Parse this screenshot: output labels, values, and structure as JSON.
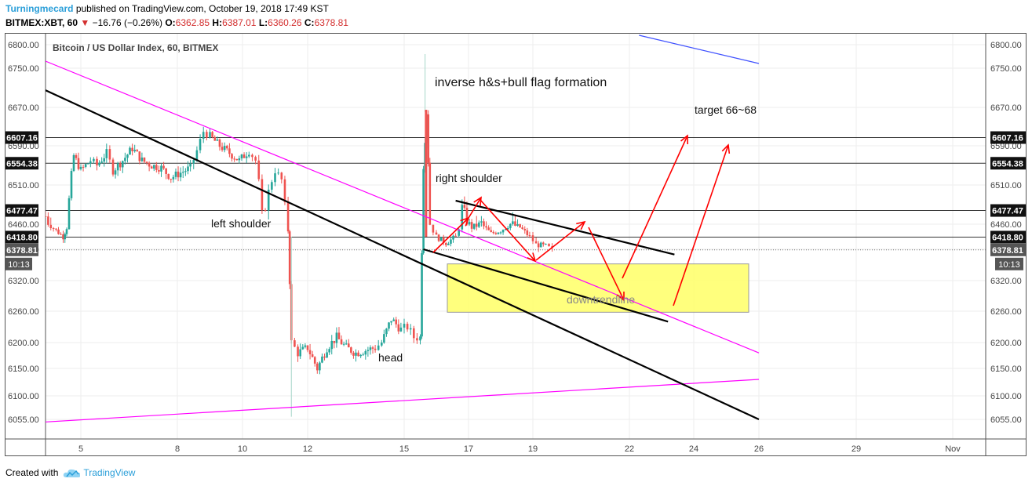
{
  "header": {
    "author": "Turningmecard",
    "published_text": "published on TradingView.com, October 19, 2018 17:49 KST",
    "symbol": "BITMEX:XBT, 60",
    "change": "−16.76 (−0.26%)",
    "open_label": "O:",
    "open": "6362.85",
    "high_label": "H:",
    "high": "6387.01",
    "low_label": "L:",
    "low": "6360.26",
    "close_label": "C:",
    "close": "6378.81"
  },
  "footer": {
    "created_with": "Created with",
    "brand": "TradingView"
  },
  "colors": {
    "up": "#26a69a",
    "down": "#ef5350",
    "magenta": "#ff00ff",
    "blue": "#3f51ff",
    "arrow": "#ff0000",
    "box": "#ffff66"
  },
  "chart_data": {
    "type": "candlestick",
    "title": "Bitcoin / US Dollar Index, 60, BITMEX",
    "y_ticks": [
      "6800.00",
      "6750.00",
      "6670.00",
      "6590.00",
      "6510.00",
      "6460.00",
      "6380.00",
      "6320.00",
      "6260.00",
      "6200.00",
      "6150.00",
      "6100.00",
      "6055.00"
    ],
    "x_ticks": [
      "5",
      "8",
      "10",
      "12",
      "15",
      "17",
      "19",
      "22",
      "24",
      "26",
      "29",
      "Nov"
    ],
    "ylim": [
      6050,
      6810
    ],
    "price_labels": [
      "6607.16",
      "6554.38",
      "6477.47",
      "6418.80",
      "6378.81"
    ],
    "countdown": "10:13",
    "current_price": 6378.81,
    "horizontal_levels": [
      6607.16,
      6554.38,
      6477.47,
      6418.8
    ],
    "annotations": {
      "pattern": "inverse h&s+bull flag formation",
      "target": "target 66~68",
      "right_shoulder": "right shoulder",
      "left_shoulder": "left shoulder",
      "head": "head",
      "box": "downtrendline"
    },
    "price_path": [
      [
        4.0,
        6470
      ],
      [
        4.3,
        6440
      ],
      [
        4.5,
        6420
      ],
      [
        4.6,
        6450
      ],
      [
        4.8,
        6570
      ],
      [
        5.0,
        6540
      ],
      [
        5.3,
        6560
      ],
      [
        5.5,
        6550
      ],
      [
        5.8,
        6575
      ],
      [
        6.0,
        6540
      ],
      [
        6.3,
        6560
      ],
      [
        6.6,
        6585
      ],
      [
        6.9,
        6560
      ],
      [
        7.2,
        6550
      ],
      [
        7.5,
        6545
      ],
      [
        7.8,
        6525
      ],
      [
        8.1,
        6535
      ],
      [
        8.4,
        6545
      ],
      [
        8.6,
        6580
      ],
      [
        8.8,
        6620
      ],
      [
        9.0,
        6610
      ],
      [
        9.3,
        6590
      ],
      [
        9.6,
        6575
      ],
      [
        9.9,
        6560
      ],
      [
        10.2,
        6580
      ],
      [
        10.4,
        6560
      ],
      [
        10.6,
        6470
      ],
      [
        10.8,
        6500
      ],
      [
        11.0,
        6540
      ],
      [
        11.2,
        6520
      ],
      [
        11.4,
        6440
      ],
      [
        11.5,
        6200
      ],
      [
        11.7,
        6180
      ],
      [
        12.0,
        6190
      ],
      [
        12.3,
        6150
      ],
      [
        12.6,
        6190
      ],
      [
        12.9,
        6210
      ],
      [
        13.2,
        6190
      ],
      [
        13.5,
        6180
      ],
      [
        13.8,
        6185
      ],
      [
        14.1,
        6190
      ],
      [
        14.3,
        6200
      ],
      [
        14.6,
        6245
      ],
      [
        14.9,
        6225
      ],
      [
        15.1,
        6230
      ],
      [
        15.3,
        6210
      ],
      [
        15.5,
        6210
      ],
      [
        15.6,
        6550
      ],
      [
        15.7,
        6660
      ],
      [
        15.8,
        6460
      ],
      [
        16.0,
        6420
      ],
      [
        16.3,
        6400
      ],
      [
        16.6,
        6420
      ],
      [
        16.8,
        6480
      ],
      [
        17.1,
        6450
      ],
      [
        17.4,
        6460
      ],
      [
        17.7,
        6430
      ],
      [
        18.0,
        6440
      ],
      [
        18.3,
        6460
      ],
      [
        18.6,
        6450
      ],
      [
        18.9,
        6420
      ],
      [
        19.1,
        6395
      ],
      [
        19.4,
        6390
      ],
      [
        19.6,
        6378.81
      ]
    ],
    "trendlines": [
      {
        "color": "magenta",
        "from": [
          4.0,
          6765
        ],
        "to": [
          26.0,
          6180
        ]
      },
      {
        "color": "magenta",
        "from": [
          4.0,
          6050
        ],
        "to": [
          26.0,
          6130
        ]
      },
      {
        "color": "black",
        "from": [
          4.0,
          6705
        ],
        "to": [
          26.0,
          6055
        ]
      },
      {
        "color": "black",
        "from": [
          16.6,
          6490
        ],
        "to": [
          23.4,
          6370
        ]
      },
      {
        "color": "black",
        "from": [
          15.6,
          6380
        ],
        "to": [
          23.2,
          6240
        ]
      },
      {
        "color": "blue",
        "from": [
          22.3,
          6820
        ],
        "to": [
          26.0,
          6760
        ]
      }
    ]
  }
}
